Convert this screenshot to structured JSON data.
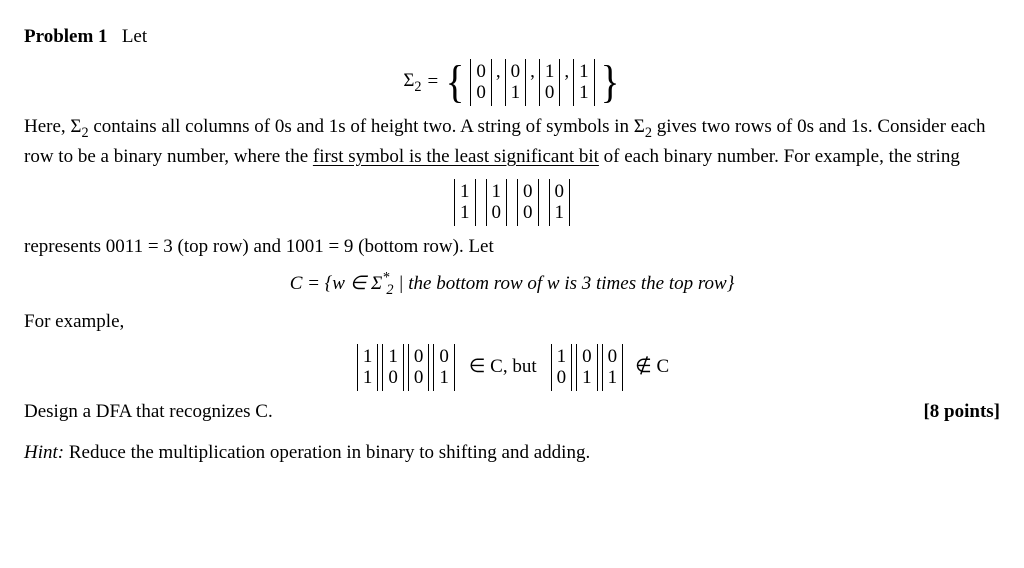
{
  "problem_label": "Problem 1",
  "let_text": "Let",
  "sigma_label": "Σ",
  "sigma_sub": "2",
  "equals": "=",
  "sigma_set": {
    "cols": [
      [
        "0",
        "0"
      ],
      [
        "0",
        "1"
      ],
      [
        "1",
        "0"
      ],
      [
        "1",
        "1"
      ]
    ]
  },
  "para1_a": "Here, Σ",
  "para1_b": " contains all columns of 0s and 1s of height two. A string of symbols in Σ",
  "para1_c": " gives two rows of 0s and 1s. Consider each row to be a binary number, where the ",
  "para1_underlined": "first symbol is the least significant bit",
  "para1_d": " of each binary number. For example, the string",
  "example1": {
    "cols": [
      [
        "1",
        "1"
      ],
      [
        "1",
        "0"
      ],
      [
        "0",
        "0"
      ],
      [
        "0",
        "1"
      ]
    ]
  },
  "para2": "represents 0011 = 3 (top row) and 1001 = 9 (bottom row). Let",
  "setdef_pre": "C = {w ∈ Σ",
  "setdef_star": "*",
  "setdef_sub": "2",
  "setdef_post": " |  the bottom row of w is 3 times the top row}",
  "for_example": "For example,",
  "inC": {
    "cols": [
      [
        "1",
        "1"
      ],
      [
        "1",
        "0"
      ],
      [
        "0",
        "0"
      ],
      [
        "0",
        "1"
      ]
    ]
  },
  "inC_text": "∈ C,  but",
  "notInC": {
    "cols": [
      [
        "1",
        "0"
      ],
      [
        "0",
        "1"
      ],
      [
        "0",
        "1"
      ]
    ]
  },
  "notInC_text": "∉ C",
  "task": "Design a DFA that recognizes C.",
  "points": "[8 points]",
  "hint_label": "Hint:",
  "hint_text": " Reduce the multiplication operation in binary to shifting and adding."
}
